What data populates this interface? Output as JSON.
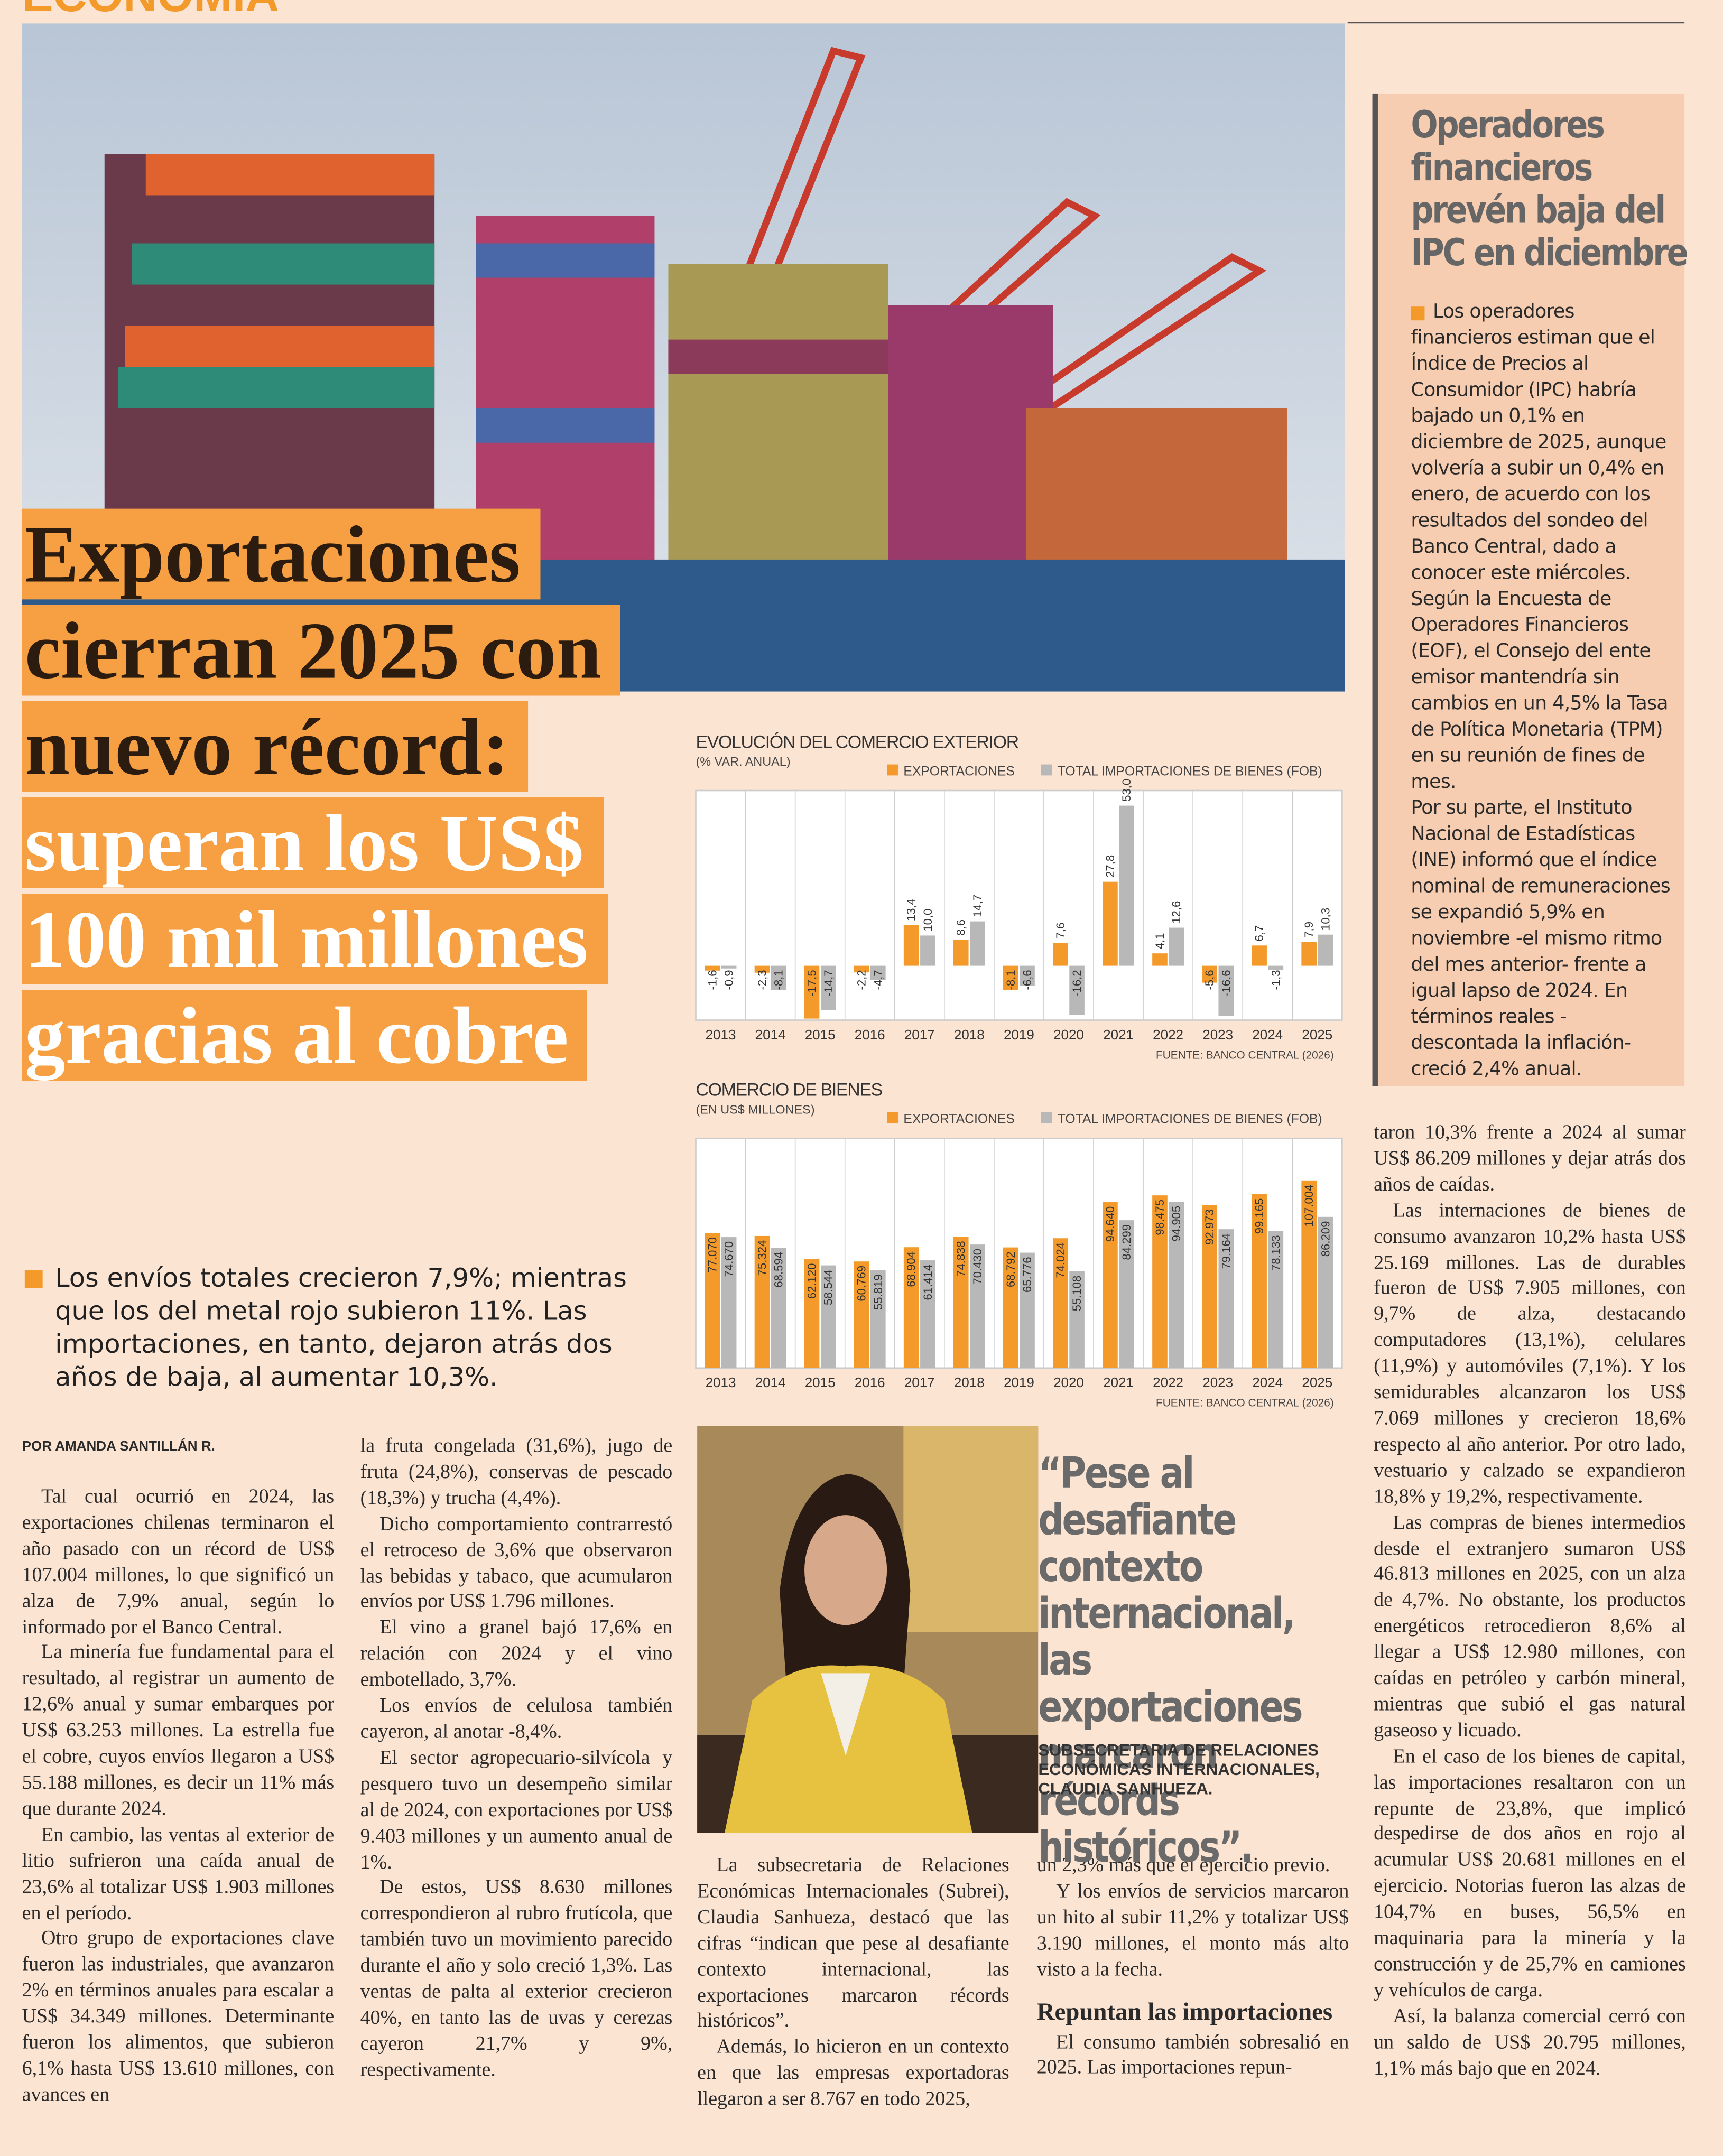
{
  "header": {
    "section": "ECONOMÍA"
  },
  "headline": {
    "dark": "Exportaciones cierran 2025 con nuevo récord:",
    "light": "superan los US$ 100 mil millones gracias al cobre"
  },
  "lead": "Los envíos totales crecieron 7,9%; mientras que los del metal rojo subieron 11%. Las importaciones, en tanto, dejaron atrás dos años de baja, al aumentar 10,3%.",
  "byline": "POR AMANDA SANTILLÁN R.",
  "columns": [
    [
      "Tal cual ocurrió en 2024, las exportaciones chilenas terminaron el año pasado con un récord de US$ 107.004 millones, lo que significó un alza de 7,9% anual, según lo informado por el Banco Central.",
      "La minería fue fundamental para el resultado, al registrar un aumento de 12,6% anual y sumar embarques por US$ 63.253 millones. La estrella fue el cobre, cuyos envíos llegaron a US$ 55.188 millones, es decir un 11% más que durante 2024.",
      "En cambio, las ventas al exterior de litio sufrieron una caída anual de 23,6% al totalizar US$ 1.903 millones en el período.",
      "Otro grupo de exportaciones clave fueron las industriales, que avanzaron 2% en términos anuales para escalar a US$ 34.349 millones. Determinante fueron los alimentos, que subieron 6,1% hasta US$ 13.610 millones, con avances en"
    ],
    [
      "la fruta congelada (31,6%), jugo de fruta (24,8%), conservas de pescado (18,3%) y trucha (4,4%).",
      "Dicho comportamiento contrarrestó el retroceso de 3,6% que observaron las bebidas y tabaco, que acumularon envíos por US$ 1.796 millones.",
      "El vino a granel bajó 17,6% en relación con 2024 y el vino embotellado, 3,7%.",
      "Los envíos de celulosa también cayeron, al anotar -8,4%.",
      "El sector agropecuario-silvícola y pesquero tuvo un desempeño similar al de 2024, con exportaciones por US$ 9.403 millones y un aumento anual de 1%.",
      "De estos, US$ 8.630 millones correspondieron al rubro frutícola, que también tuvo un movimiento parecido durante el año y solo creció 1,3%. Las ventas de palta al exterior crecieron 40%, en tanto las de uvas y cerezas cayeron 21,7% y 9%, respectivamente."
    ],
    [
      "La subsecretaria de Relaciones Económicas Internacionales (Subrei), Claudia Sanhueza, destacó que las cifras “indican que pese al desafiante contexto internacional, las exportaciones marcaron récords históricos”.",
      "Además, lo hicieron en un contexto en que las empresas exportadoras llegaron a ser 8.767 en todo 2025,"
    ],
    [
      "un 2,3% más que el ejercicio previo.",
      "Y los envíos de servicios marcaron un hito al subir 11,2% y totalizar US$ 3.190 millones, el monto más alto visto a la fecha."
    ],
    [
      "taron 10,3% frente a 2024 al sumar US$ 86.209 millones y dejar atrás dos años de caídas.",
      "Las internaciones de bienes de consumo avanzaron 10,2% hasta US$ 25.169 millones. Las de durables fueron de US$ 7.905 millones, con 9,7% de alza, destacando computadores (13,1%), celulares (11,9%) y automóviles (7,1%). Y los semidurables alcanzaron los US$ 7.069 millones y crecieron 18,6% respecto al año anterior. Por otro lado, vestuario y calzado se expandieron 18,8% y 19,2%, respectivamente.",
      "Las compras de bienes intermedios desde el extranjero sumaron US$ 46.813 millones en 2025, con un alza de 4,7%. No obstante, los productos energéticos retrocedieron 8,6% al llegar a US$ 12.980 millones, con caídas en petróleo y carbón mineral, mientras que subió el gas natural gaseoso y licuado.",
      "En el caso de los bienes de capital, las importaciones resaltaron con un repunte de 23,8%, que implicó despedirse de dos años en rojo al acumular US$ 20.681 millones en el ejercicio. Notorias fueron las alzas de 104,7% en buses, 56,5% en maquinaria para la minería y la construcción y de 25,7% en camiones y vehículos de carga.",
      "Así, la balanza comercial cerró con un saldo de US$ 20.795 millones, 1,1% más bajo que en 2024."
    ]
  ],
  "subhead": {
    "title": "Repuntan las importaciones",
    "text": "El consumo también sobresalió en 2025. Las importaciones repun-"
  },
  "quote": {
    "text": "“Pese al desafiante contexto internacional, las exportaciones marcaron récords históricos”.",
    "attribution": "SUBSECRETARIA DE RELACIONES ECONÓMICAS INTERNACIONALES, CLAUDIA SANHUEZA."
  },
  "sidebar": {
    "title": "Operadores financieros prevén baja del IPC en diciembre",
    "paragraphs": [
      "Los operadores financieros estiman que el Índice de Precios al Consumidor (IPC) habría bajado un 0,1% en diciembre de 2025, aunque volvería a subir un 0,4% en enero, de acuerdo con los resultados del sondeo del Banco Central, dado a conocer este miércoles.",
      "Según la Encuesta de Operadores Financieros (EOF), el Consejo del ente emisor mantendría sin cambios en un 4,5% la Tasa de Política Monetaria (TPM) en su reunión de fines de mes.",
      "Por su parte, el Instituto Nacional de Estadísticas (INE) informó que el índice nominal de remuneraciones se expandió 5,9% en noviembre -el mismo ritmo del mes anterior- frente a igual lapso de 2024. En términos reales -descontada la inflación- creció 2,4% anual."
    ]
  },
  "chart_data": [
    {
      "type": "bar",
      "title": "EVOLUCIÓN DEL COMERCIO EXTERIOR",
      "subtitle": "(% VAR. ANUAL)",
      "source": "FUENTE: BANCO CENTRAL (2026)",
      "categories": [
        "2013",
        "2014",
        "2015",
        "2016",
        "2017",
        "2018",
        "2019",
        "2020",
        "2021",
        "2022",
        "2023",
        "2024",
        "2025"
      ],
      "series": [
        {
          "name": "EXPORTACIONES",
          "color": "#f39a2b",
          "values": [
            -1.6,
            -2.3,
            -17.5,
            -2.2,
            13.4,
            8.6,
            -8.1,
            7.6,
            27.8,
            4.1,
            -5.6,
            6.7,
            7.9
          ],
          "value_labels": [
            "-1,6",
            "-2,3",
            "-17,5",
            "-2,2",
            "13,4",
            "8,6",
            "-8,1",
            "7,6",
            "27,8",
            "4,1",
            "-5,6",
            "6,7",
            "7,9"
          ]
        },
        {
          "name": "TOTAL IMPORTACIONES DE BIENES (FOB)",
          "color": "#b8b8b8",
          "values": [
            -0.9,
            -8.1,
            -14.7,
            -4.7,
            10.0,
            14.7,
            -6.6,
            -16.2,
            53.0,
            12.6,
            -16.6,
            -1.3,
            10.3
          ],
          "value_labels": [
            "-0,9",
            "-8,1",
            "-14,7",
            "-4,7",
            "10,0",
            "14,7",
            "-6,6",
            "-16,2",
            "53,0",
            "12,6",
            "-16,6",
            "-1,3",
            "10,3"
          ]
        }
      ],
      "ylim": [
        -18,
        58
      ],
      "label_position": "outside"
    },
    {
      "type": "bar",
      "title": "COMERCIO DE BIENES",
      "subtitle": "(EN US$ MILLONES)",
      "source": "FUENTE: BANCO CENTRAL (2026)",
      "categories": [
        "2013",
        "2014",
        "2015",
        "2016",
        "2017",
        "2018",
        "2019",
        "2020",
        "2021",
        "2022",
        "2023",
        "2024",
        "2025"
      ],
      "series": [
        {
          "name": "EXPORTACIONES",
          "color": "#f39a2b",
          "values": [
            77070,
            75324,
            62120,
            60769,
            68904,
            74838,
            68792,
            74024,
            94640,
            98475,
            92973,
            99165,
            107004
          ],
          "value_labels": [
            "77.070",
            "75.324",
            "62.120",
            "60.769",
            "68.904",
            "74.838",
            "68.792",
            "74.024",
            "94.640",
            "98.475",
            "92.973",
            "99.165",
            "107.004"
          ]
        },
        {
          "name": "TOTAL IMPORTACIONES DE BIENES (FOB)",
          "color": "#b8b8b8",
          "values": [
            74670,
            68594,
            58544,
            55819,
            61414,
            70430,
            65776,
            55108,
            84299,
            94905,
            79164,
            78133,
            86209
          ],
          "value_labels": [
            "74.670",
            "68.594",
            "58.544",
            "55.819",
            "61.414",
            "70.430",
            "65.776",
            "55.108",
            "84.299",
            "94.905",
            "79.164",
            "78.133",
            "86.209"
          ]
        }
      ],
      "ylim": [
        0,
        131000
      ],
      "label_position": "inside"
    }
  ]
}
